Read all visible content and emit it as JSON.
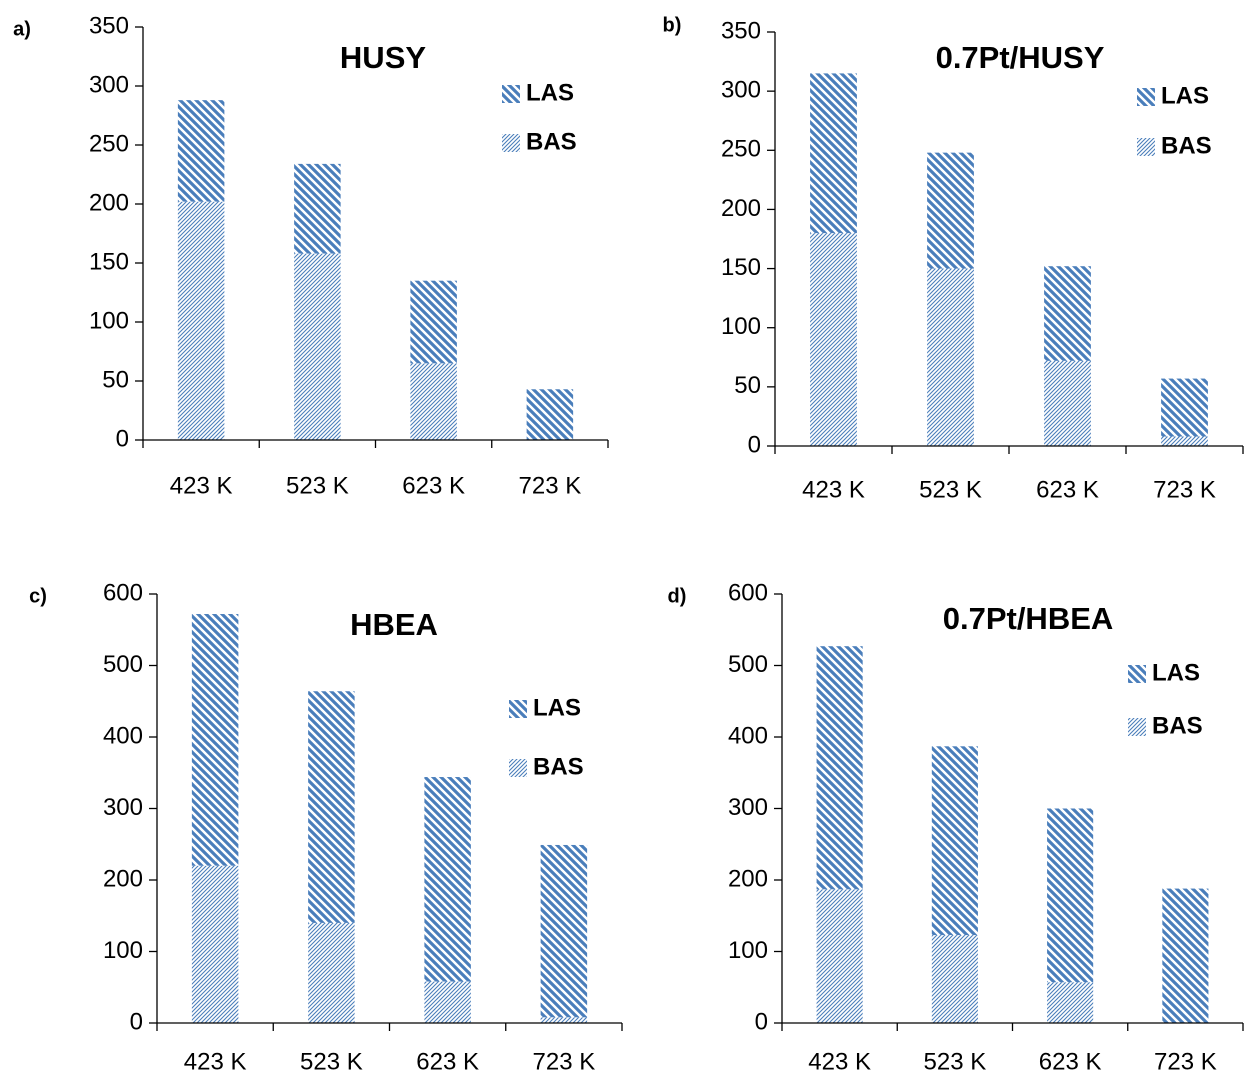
{
  "chart_data": [
    {
      "type": "bar",
      "stacked": true,
      "label": "a)",
      "title": "HUSY",
      "categories": [
        "423 K",
        "523 K",
        "623 K",
        "723 K"
      ],
      "series": [
        {
          "name": "BAS",
          "color": "#4a7ebb",
          "hatch": "light-upward",
          "values": [
            202,
            158,
            65,
            0
          ]
        },
        {
          "name": "LAS",
          "color": "#4a7ebb",
          "hatch": "wide-downward",
          "values": [
            86,
            76,
            70,
            43
          ]
        }
      ],
      "ylim": [
        0,
        350
      ],
      "yticks": [
        0,
        50,
        100,
        150,
        200,
        250,
        300,
        350
      ]
    },
    {
      "type": "bar",
      "stacked": true,
      "label": "b)",
      "title": "0.7Pt/HUSY",
      "categories": [
        "423 K",
        "523 K",
        "623 K",
        "723 K"
      ],
      "series": [
        {
          "name": "BAS",
          "color": "#4a7ebb",
          "hatch": "light-upward",
          "values": [
            180,
            150,
            72,
            8
          ]
        },
        {
          "name": "LAS",
          "color": "#4a7ebb",
          "hatch": "wide-downward",
          "values": [
            135,
            98,
            80,
            49
          ]
        }
      ],
      "ylim": [
        0,
        350
      ],
      "yticks": [
        0,
        50,
        100,
        150,
        200,
        250,
        300,
        350
      ]
    },
    {
      "type": "bar",
      "stacked": true,
      "label": "c)",
      "title": "HBEA",
      "categories": [
        "423 K",
        "523 K",
        "623 K",
        "723 K"
      ],
      "series": [
        {
          "name": "BAS",
          "color": "#4a7ebb",
          "hatch": "light-upward",
          "values": [
            220,
            140,
            58,
            8
          ]
        },
        {
          "name": "LAS",
          "color": "#4a7ebb",
          "hatch": "wide-downward",
          "values": [
            352,
            324,
            286,
            241
          ]
        }
      ],
      "ylim": [
        0,
        600
      ],
      "yticks": [
        0,
        100,
        200,
        300,
        400,
        500,
        600
      ]
    },
    {
      "type": "bar",
      "stacked": true,
      "label": "d)",
      "title": "0.7Pt/HBEA",
      "categories": [
        "423 K",
        "523 K",
        "623 K",
        "723 K"
      ],
      "series": [
        {
          "name": "BAS",
          "color": "#4a7ebb",
          "hatch": "light-upward",
          "values": [
            187,
            123,
            57,
            0
          ]
        },
        {
          "name": "LAS",
          "color": "#4a7ebb",
          "hatch": "wide-downward",
          "values": [
            340,
            264,
            243,
            188
          ]
        }
      ],
      "ylim": [
        0,
        600
      ],
      "yticks": [
        0,
        100,
        200,
        300,
        400,
        500,
        600
      ]
    }
  ]
}
